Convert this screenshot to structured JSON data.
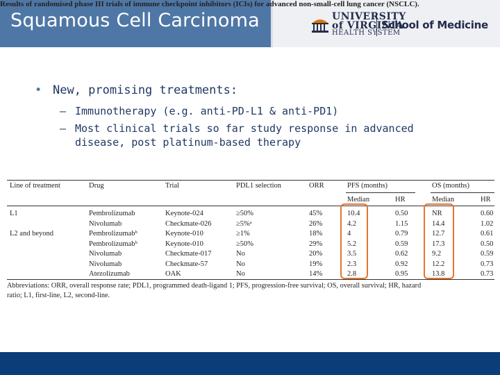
{
  "header": {
    "title": "Squamous Cell Carcinoma",
    "logo": {
      "university_line1": "UNIVERSITY",
      "university_line2": "of VIRGINIA",
      "university_line3": "HEALTH SYSTEM",
      "school": "School of Medicine"
    }
  },
  "bullets": {
    "main_marker": "•",
    "main": "New, promising treatments:",
    "sub_marker": "–",
    "sub1": "Immunotherapy (e.g. anti-PD-L1 & anti-PD1)",
    "sub2_line1": "Most clinical trials so far study response in advanced",
    "sub2_line2": "disease, post platinum-based therapy"
  },
  "table": {
    "caption": "Results of randomised phase III trials of immune checkpoint inhibitors (ICIs) for advanced non-small-cell lung cancer (NSCLC).",
    "headers": {
      "line": "Line of treatment",
      "drug": "Drug",
      "trial": "Trial",
      "pdl1": "PDL1 selection",
      "orr": "ORR",
      "pfs": "PFS (months)",
      "os": "OS (months)",
      "median": "Median",
      "hr": "HR"
    },
    "rows": [
      {
        "line": "L1",
        "drug": "Pembrolizumab",
        "trial": "Keynote-024",
        "pdl1": "≥50%",
        "orr": "45%",
        "pfs_median": "10.4",
        "pfs_hr": "0.50",
        "os_median": "NR",
        "os_hr": "0.60"
      },
      {
        "line": "",
        "drug": "Nivolumab",
        "trial": "Checkmate-026",
        "pdl1": "≥5%ᵃ",
        "orr": "26%",
        "pfs_median": "4.2",
        "pfs_hr": "1.15",
        "os_median": "14.4",
        "os_hr": "1.02"
      },
      {
        "line": "L2 and beyond",
        "drug": "Pembrolizumabᵇ",
        "trial": "Keynote-010",
        "pdl1": "≥1%",
        "orr": "18%",
        "pfs_median": "4",
        "pfs_hr": "0.79",
        "os_median": "12.7",
        "os_hr": "0.61"
      },
      {
        "line": "",
        "drug": "Pembrolizumabᵇ",
        "trial": "Keynote-010",
        "pdl1": "≥50%",
        "orr": "29%",
        "pfs_median": "5.2",
        "pfs_hr": "0.59",
        "os_median": "17.3",
        "os_hr": "0.50"
      },
      {
        "line": "",
        "drug": "Nivolumab",
        "trial": "Checkmate-017",
        "pdl1": "No",
        "orr": "20%",
        "pfs_median": "3.5",
        "pfs_hr": "0.62",
        "os_median": "9.2",
        "os_hr": "0.59"
      },
      {
        "line": "",
        "drug": "Nivolumab",
        "trial": "Checkmate-57",
        "pdl1": "No",
        "orr": "19%",
        "pfs_median": "2.3",
        "pfs_hr": "0.92",
        "os_median": "12.2",
        "os_hr": "0.73"
      },
      {
        "line": "",
        "drug": "Atezolizumab",
        "trial": "OAK",
        "pdl1": "No",
        "orr": "14%",
        "pfs_median": "2.8",
        "pfs_hr": "0.95",
        "os_median": "13.8",
        "os_hr": "0.73"
      }
    ],
    "footnote_line1": "Abbreviations: ORR, overall response rate; PDL1, programmed death-ligand 1; PFS, progression-free survival; OS, overall survival; HR, hazard",
    "footnote_line2": "ratio; L1, first-line, L2, second-line."
  },
  "colors": {
    "header_blue": "#4f77a6",
    "footer_navy": "#0b3d78",
    "highlight_orange": "#e8742c",
    "text_navy": "#1f3864"
  }
}
